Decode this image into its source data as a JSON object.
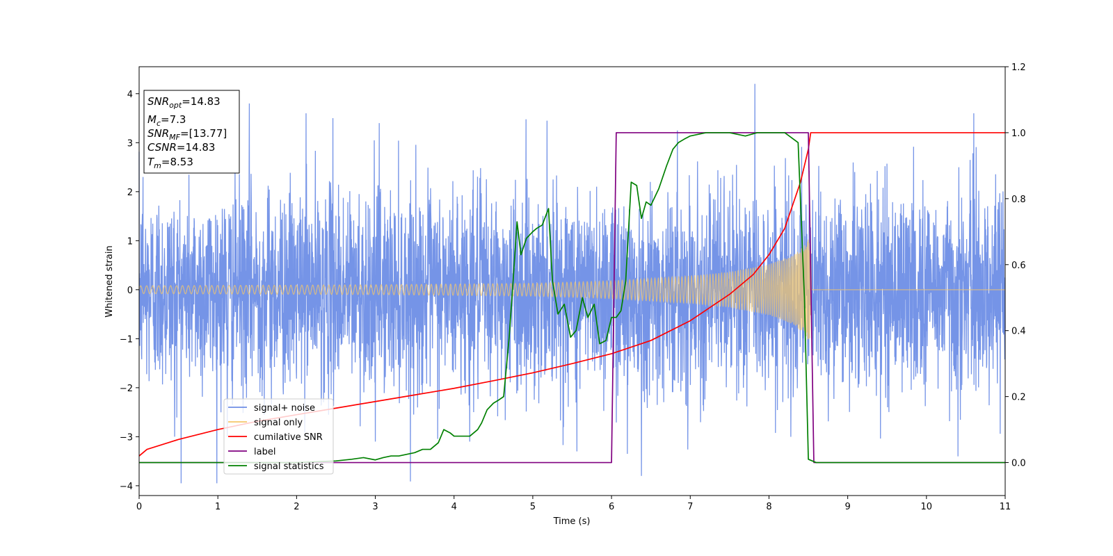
{
  "chart_data": {
    "type": "line",
    "xlabel": "Time (s)",
    "ylabel": "Whitened strain",
    "xlim": [
      0,
      11
    ],
    "ylim": [
      -4.2,
      4.55
    ],
    "y2lim": [
      -0.1,
      1.2
    ],
    "x_ticks": [
      "0",
      "1",
      "2",
      "3",
      "4",
      "5",
      "6",
      "7",
      "8",
      "9",
      "10",
      "11"
    ],
    "y_ticks": [
      "−4",
      "−3",
      "−2",
      "−1",
      "0",
      "1",
      "2",
      "3",
      "4"
    ],
    "y_tick_values": [
      -4,
      -3,
      -2,
      -1,
      0,
      1,
      2,
      3,
      4
    ],
    "y2_ticks": [
      "0.0",
      "0.2",
      "0.4",
      "0.6",
      "0.8",
      "1.0",
      "1.2"
    ],
    "y2_tick_values": [
      0.0,
      0.2,
      0.4,
      0.6,
      0.8,
      1.0,
      1.2
    ],
    "grid": false,
    "legend_placement": "lower-left",
    "legend": [
      {
        "label": "signal+ noise",
        "color": "#6e8ee6"
      },
      {
        "label": "signal only",
        "color": "#f5c76a"
      },
      {
        "label": "cumilative SNR",
        "color": "#ff0000"
      },
      {
        "label": "label",
        "color": "#800080"
      },
      {
        "label": "signal statistics",
        "color": "#008000"
      }
    ],
    "info_box": [
      {
        "name": "SNR",
        "sub": "opt",
        "value": "=14.83"
      },
      {
        "name": "M",
        "sub": "c",
        "value": "=7.3"
      },
      {
        "name": "SNR",
        "sub": "MF",
        "value": "=[13.77]"
      },
      {
        "name": "CSNR",
        "sub": "",
        "value": "=14.83"
      },
      {
        "name": "T",
        "sub": "m",
        "value": "=8.53"
      }
    ],
    "series": [
      {
        "name": "signal+ noise",
        "axis": "left",
        "color": "#6e8ee6",
        "kind": "noise",
        "x_range": [
          0,
          11
        ],
        "typical_range": [
          -2.6,
          2.6
        ],
        "peak_values": [
          [
            0.05,
            2.3
          ],
          [
            0.45,
            -3.0
          ],
          [
            1.12,
            -3.0
          ],
          [
            1.4,
            3.8
          ],
          [
            2.12,
            3.6
          ],
          [
            2.46,
            3.5
          ],
          [
            3.0,
            -3.1
          ],
          [
            3.05,
            3.4
          ],
          [
            4.2,
            -3.1
          ],
          [
            5.18,
            3.45
          ],
          [
            5.56,
            -3.3
          ],
          [
            6.2,
            -3.35
          ],
          [
            6.38,
            -3.8
          ],
          [
            7.82,
            4.2
          ],
          [
            10.4,
            -3.4
          ],
          [
            10.6,
            3.6
          ]
        ]
      },
      {
        "name": "signal only",
        "axis": "left",
        "color": "#f5c76a",
        "kind": "chirp",
        "x_range": [
          0,
          8.53
        ],
        "amplitude": [
          [
            0,
            0.08
          ],
          [
            3,
            0.1
          ],
          [
            5,
            0.13
          ],
          [
            6,
            0.18
          ],
          [
            7,
            0.28
          ],
          [
            7.5,
            0.36
          ],
          [
            8,
            0.52
          ],
          [
            8.3,
            0.7
          ],
          [
            8.45,
            0.9
          ],
          [
            8.53,
            1.1
          ]
        ]
      },
      {
        "name": "cumilative SNR",
        "axis": "right",
        "color": "#ff0000",
        "x": [
          0,
          0.1,
          0.5,
          1,
          1.5,
          2,
          2.5,
          3,
          3.5,
          4,
          4.5,
          5,
          5.5,
          6,
          6.5,
          7,
          7.5,
          7.8,
          8,
          8.2,
          8.4,
          8.5,
          8.53,
          8.55,
          11
        ],
        "values": [
          0.02,
          0.04,
          0.07,
          0.1,
          0.125,
          0.145,
          0.165,
          0.185,
          0.205,
          0.225,
          0.248,
          0.272,
          0.3,
          0.33,
          0.37,
          0.43,
          0.51,
          0.57,
          0.63,
          0.71,
          0.85,
          0.95,
          1.0,
          1.0,
          1.0
        ]
      },
      {
        "name": "label",
        "axis": "right",
        "color": "#800080",
        "x": [
          0,
          6.0,
          6.06,
          8.5,
          8.57,
          11
        ],
        "values": [
          0.0,
          0.0,
          1.0,
          1.0,
          0.0,
          0.0
        ]
      },
      {
        "name": "signal statistics",
        "axis": "right",
        "color": "#008000",
        "x": [
          0,
          1,
          2,
          2.5,
          2.7,
          2.85,
          3.0,
          3.1,
          3.2,
          3.3,
          3.4,
          3.5,
          3.6,
          3.7,
          3.8,
          3.87,
          3.95,
          4.0,
          4.1,
          4.2,
          4.25,
          4.3,
          4.35,
          4.42,
          4.5,
          4.57,
          4.63,
          4.7,
          4.75,
          4.8,
          4.85,
          4.92,
          5.0,
          5.05,
          5.12,
          5.2,
          5.25,
          5.32,
          5.4,
          5.48,
          5.55,
          5.63,
          5.7,
          5.78,
          5.85,
          5.93,
          6.0,
          6.06,
          6.12,
          6.18,
          6.25,
          6.32,
          6.38,
          6.44,
          6.5,
          6.6,
          6.7,
          6.78,
          6.85,
          6.92,
          7.0,
          7.2,
          7.5,
          7.7,
          7.85,
          8.0,
          8.2,
          8.37,
          8.45,
          8.5,
          8.6,
          11
        ],
        "values": [
          0.0,
          0.0,
          0.0,
          0.005,
          0.01,
          0.015,
          0.008,
          0.015,
          0.02,
          0.02,
          0.025,
          0.03,
          0.04,
          0.04,
          0.06,
          0.1,
          0.09,
          0.08,
          0.08,
          0.08,
          0.09,
          0.1,
          0.12,
          0.16,
          0.18,
          0.19,
          0.2,
          0.38,
          0.55,
          0.73,
          0.63,
          0.68,
          0.7,
          0.71,
          0.72,
          0.77,
          0.55,
          0.45,
          0.48,
          0.38,
          0.4,
          0.5,
          0.44,
          0.48,
          0.36,
          0.37,
          0.44,
          0.44,
          0.46,
          0.55,
          0.85,
          0.84,
          0.74,
          0.79,
          0.78,
          0.83,
          0.9,
          0.95,
          0.97,
          0.98,
          0.99,
          1.0,
          1.0,
          0.99,
          1.0,
          1.0,
          1.0,
          0.97,
          0.5,
          0.01,
          0.0,
          0.0
        ]
      }
    ]
  }
}
